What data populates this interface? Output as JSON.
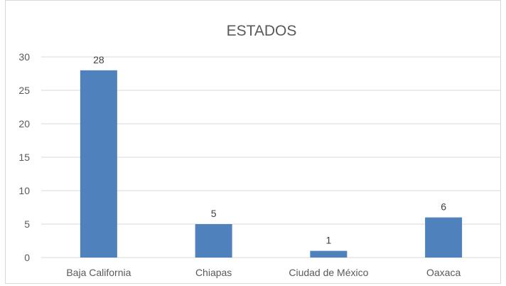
{
  "chart_data": {
    "type": "bar",
    "title": "ESTADOS",
    "xlabel": "",
    "ylabel": "",
    "categories": [
      "Baja California",
      "Chiapas",
      "Ciudad de México",
      "Oaxaca"
    ],
    "values": [
      28,
      5,
      1,
      6
    ],
    "data_labels": [
      "28",
      "5",
      "1",
      "6"
    ],
    "ylim": [
      0,
      30
    ],
    "yticks": [
      0,
      5,
      10,
      15,
      20,
      25,
      30
    ],
    "ytick_labels": [
      "0",
      "5",
      "10",
      "15",
      "20",
      "25",
      "30"
    ],
    "grid": true,
    "legend": "none",
    "colors": {
      "bar": "#4f81bd",
      "grid": "#d9d9d9",
      "text": "#595959"
    }
  }
}
